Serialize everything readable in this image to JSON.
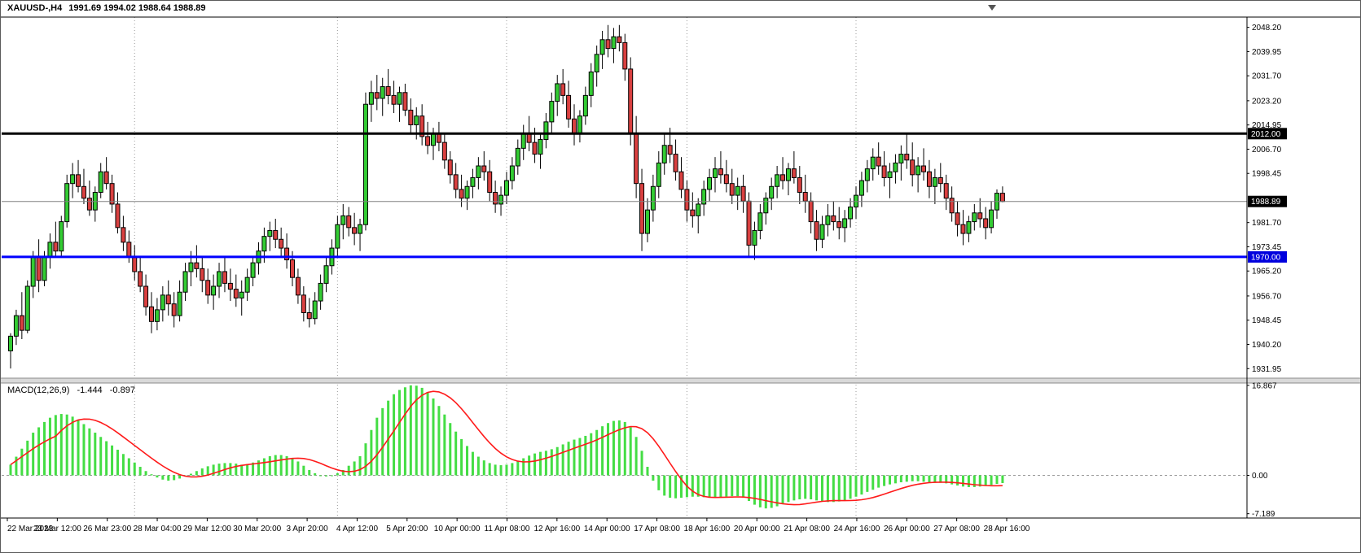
{
  "header": {
    "symbol": "XAUUSD-,H4",
    "ohlc": "1991.69 1994.02 1988.64 1988.89"
  },
  "price_axis": {
    "labels": [
      "2048.20",
      "2039.95",
      "2031.70",
      "2023.20",
      "2014.95",
      "2006.70",
      "1998.45",
      "1981.70",
      "1973.45",
      "1965.20",
      "1956.70",
      "1948.45",
      "1940.20",
      "1931.95"
    ],
    "badges": [
      {
        "label": "2012.00",
        "price": 2012.0,
        "bg": "#000000",
        "fg": "#ffffff"
      },
      {
        "label": "1988.89",
        "price": 1988.89,
        "bg": "#000000",
        "fg": "#ffffff"
      },
      {
        "label": "1970.00",
        "price": 1970.0,
        "bg": "#0000dd",
        "fg": "#ffffff"
      }
    ]
  },
  "macd_panel": {
    "label": "MACD(12,26,9)",
    "main_value": "-1.444",
    "signal_value": "-0.897",
    "axis_labels": [
      "16.867",
      "0.00",
      "-7.189"
    ]
  },
  "time_axis": {
    "labels": [
      "22 Mar 2023",
      "23 Mar 12:00",
      "26 Mar 23:00",
      "28 Mar 04:00",
      "29 Mar 12:00",
      "30 Mar 20:00",
      "3 Apr 20:00",
      "4 Apr 12:00",
      "5 Apr 20:00",
      "10 Apr 00:00",
      "11 Apr 08:00",
      "12 Apr 16:00",
      "14 Apr 00:00",
      "17 Apr 08:00",
      "18 Apr 16:00",
      "20 Apr 00:00",
      "21 Apr 08:00",
      "24 Apr 16:00",
      "26 Apr 00:00",
      "27 Apr 08:00",
      "28 Apr 16:00"
    ]
  },
  "chart_data": {
    "type": "candlestick",
    "symbol": "XAUUSD-",
    "timeframe": "H4",
    "last_bar": {
      "open": 1991.69,
      "high": 1994.02,
      "low": 1988.64,
      "close": 1988.89
    },
    "price_range": [
      1928.7,
      2051.7
    ],
    "grid": "off",
    "week_separator_indices": [
      22,
      58,
      88,
      120,
      150
    ],
    "colors": {
      "bull": "#33cc33",
      "bear": "#d94040",
      "wick": "#000000",
      "histogram": "#44dd44",
      "signal": "#ff1a1a",
      "hline_black": "#000000",
      "hline_blue": "#0000ff",
      "current_price_line": "#808080",
      "separator": "#999999"
    },
    "overlays": {
      "hlines": [
        {
          "price": 2012.0,
          "color": "#000000",
          "width": 3
        },
        {
          "price": 1970.0,
          "color": "#0000ff",
          "width": 3
        }
      ],
      "current_price": 1988.89
    },
    "candles": [
      [
        1938,
        1944,
        1932,
        1943
      ],
      [
        1943,
        1952,
        1940,
        1950
      ],
      [
        1950,
        1958,
        1942,
        1945
      ],
      [
        1945,
        1962,
        1944,
        1960
      ],
      [
        1960,
        1972,
        1956,
        1970
      ],
      [
        1970,
        1976,
        1958,
        1962
      ],
      [
        1962,
        1972,
        1960,
        1970
      ],
      [
        1970,
        1978,
        1966,
        1975
      ],
      [
        1975,
        1982,
        1970,
        1972
      ],
      [
        1972,
        1984,
        1970,
        1982
      ],
      [
        1982,
        1998,
        1980,
        1995
      ],
      [
        1995,
        2002,
        1990,
        1998
      ],
      [
        1998,
        2003,
        1992,
        1994
      ],
      [
        1994,
        2000,
        1988,
        1990
      ],
      [
        1990,
        1996,
        1984,
        1986
      ],
      [
        1986,
        1994,
        1982,
        1992
      ],
      [
        1992,
        2002,
        1990,
        1999
      ],
      [
        1999,
        2004,
        1993,
        1995
      ],
      [
        1995,
        1998,
        1985,
        1988
      ],
      [
        1988,
        1992,
        1978,
        1980
      ],
      [
        1980,
        1984,
        1972,
        1975
      ],
      [
        1975,
        1979,
        1968,
        1970
      ],
      [
        1970,
        1974,
        1962,
        1965
      ],
      [
        1965,
        1970,
        1958,
        1960
      ],
      [
        1960,
        1964,
        1950,
        1953
      ],
      [
        1953,
        1958,
        1944,
        1948
      ],
      [
        1948,
        1956,
        1945,
        1952
      ],
      [
        1952,
        1960,
        1948,
        1957
      ],
      [
        1957,
        1962,
        1950,
        1954
      ],
      [
        1954,
        1958,
        1946,
        1950
      ],
      [
        1950,
        1962,
        1948,
        1958
      ],
      [
        1958,
        1968,
        1955,
        1965
      ],
      [
        1965,
        1972,
        1960,
        1968
      ],
      [
        1968,
        1974,
        1963,
        1966
      ],
      [
        1966,
        1970,
        1958,
        1962
      ],
      [
        1962,
        1966,
        1954,
        1957
      ],
      [
        1957,
        1964,
        1952,
        1960
      ],
      [
        1960,
        1968,
        1956,
        1965
      ],
      [
        1965,
        1970,
        1958,
        1961
      ],
      [
        1961,
        1966,
        1955,
        1959
      ],
      [
        1959,
        1964,
        1953,
        1956
      ],
      [
        1956,
        1962,
        1950,
        1958
      ],
      [
        1958,
        1966,
        1955,
        1963
      ],
      [
        1963,
        1970,
        1960,
        1968
      ],
      [
        1968,
        1975,
        1964,
        1972
      ],
      [
        1972,
        1980,
        1968,
        1977
      ],
      [
        1977,
        1982,
        1972,
        1979
      ],
      [
        1979,
        1983,
        1973,
        1976
      ],
      [
        1976,
        1980,
        1970,
        1973
      ],
      [
        1973,
        1978,
        1966,
        1969
      ],
      [
        1969,
        1972,
        1960,
        1963
      ],
      [
        1963,
        1966,
        1954,
        1957
      ],
      [
        1957,
        1960,
        1948,
        1951
      ],
      [
        1951,
        1956,
        1946,
        1949
      ],
      [
        1949,
        1958,
        1947,
        1955
      ],
      [
        1955,
        1964,
        1952,
        1961
      ],
      [
        1961,
        1970,
        1958,
        1967
      ],
      [
        1967,
        1976,
        1964,
        1973
      ],
      [
        1973,
        1984,
        1970,
        1981
      ],
      [
        1981,
        1988,
        1976,
        1984
      ],
      [
        1984,
        1987,
        1977,
        1980
      ],
      [
        1980,
        1985,
        1974,
        1978
      ],
      [
        1978,
        1983,
        1972,
        1981
      ],
      [
        1981,
        2026,
        1979,
        2022
      ],
      [
        2022,
        2030,
        2016,
        2026
      ],
      [
        2026,
        2032,
        2020,
        2024
      ],
      [
        2024,
        2031,
        2018,
        2028
      ],
      [
        2028,
        2034,
        2022,
        2025
      ],
      [
        2025,
        2030,
        2019,
        2022
      ],
      [
        2022,
        2028,
        2016,
        2026
      ],
      [
        2026,
        2029,
        2018,
        2020
      ],
      [
        2020,
        2024,
        2012,
        2015
      ],
      [
        2015,
        2021,
        2010,
        2018
      ],
      [
        2018,
        2022,
        2008,
        2011
      ],
      [
        2011,
        2016,
        2005,
        2008
      ],
      [
        2008,
        2014,
        2003,
        2012
      ],
      [
        2012,
        2016,
        2006,
        2009
      ],
      [
        2009,
        2012,
        2000,
        2003
      ],
      [
        2003,
        2006,
        1995,
        1998
      ],
      [
        1998,
        2002,
        1990,
        1993
      ],
      [
        1993,
        1998,
        1987,
        1990
      ],
      [
        1990,
        1996,
        1986,
        1994
      ],
      [
        1994,
        2000,
        1990,
        1997
      ],
      [
        1997,
        2004,
        1993,
        2001
      ],
      [
        2001,
        2006,
        1996,
        1999
      ],
      [
        1999,
        2003,
        1989,
        1992
      ],
      [
        1992,
        1996,
        1985,
        1988
      ],
      [
        1988,
        1994,
        1984,
        1991
      ],
      [
        1991,
        1999,
        1988,
        1996
      ],
      [
        1996,
        2004,
        1993,
        2001
      ],
      [
        2001,
        2010,
        1998,
        2007
      ],
      [
        2007,
        2015,
        2003,
        2012
      ],
      [
        2012,
        2018,
        2006,
        2009
      ],
      [
        2009,
        2014,
        2002,
        2005
      ],
      [
        2005,
        2012,
        2000,
        2010
      ],
      [
        2010,
        2019,
        2007,
        2016
      ],
      [
        2016,
        2026,
        2012,
        2023
      ],
      [
        2023,
        2032,
        2018,
        2029
      ],
      [
        2029,
        2034,
        2022,
        2025
      ],
      [
        2025,
        2030,
        2014,
        2017
      ],
      [
        2017,
        2022,
        2008,
        2012
      ],
      [
        2012,
        2020,
        2009,
        2018
      ],
      [
        2018,
        2028,
        2015,
        2025
      ],
      [
        2025,
        2036,
        2021,
        2033
      ],
      [
        2033,
        2042,
        2028,
        2039
      ],
      [
        2039,
        2047,
        2034,
        2044
      ],
      [
        2044,
        2049,
        2038,
        2041
      ],
      [
        2041,
        2048,
        2036,
        2045
      ],
      [
        2045,
        2049,
        2040,
        2043
      ],
      [
        2043,
        2046,
        2030,
        2034
      ],
      [
        2034,
        2038,
        2008,
        2012
      ],
      [
        2012,
        2018,
        1990,
        1995
      ],
      [
        1995,
        2000,
        1972,
        1978
      ],
      [
        1978,
        1990,
        1975,
        1986
      ],
      [
        1986,
        1998,
        1982,
        1994
      ],
      [
        1994,
        2006,
        1990,
        2002
      ],
      [
        2002,
        2012,
        1998,
        2008
      ],
      [
        2008,
        2014,
        2002,
        2005
      ],
      [
        2005,
        2010,
        1996,
        1999
      ],
      [
        1999,
        2004,
        1990,
        1993
      ],
      [
        1993,
        1996,
        1982,
        1986
      ],
      [
        1986,
        1992,
        1980,
        1984
      ],
      [
        1984,
        1990,
        1978,
        1988
      ],
      [
        1988,
        1996,
        1984,
        1993
      ],
      [
        1993,
        2000,
        1989,
        1997
      ],
      [
        1997,
        2004,
        1992,
        2000
      ],
      [
        2000,
        2006,
        1995,
        1998
      ],
      [
        1998,
        2003,
        1992,
        1995
      ],
      [
        1995,
        2000,
        1988,
        1991
      ],
      [
        1991,
        1997,
        1986,
        1994
      ],
      [
        1994,
        1998,
        1985,
        1989
      ],
      [
        1989,
        1992,
        1970,
        1974
      ],
      [
        1974,
        1982,
        1969,
        1979
      ],
      [
        1979,
        1988,
        1976,
        1985
      ],
      [
        1985,
        1992,
        1981,
        1990
      ],
      [
        1990,
        1997,
        1986,
        1994
      ],
      [
        1994,
        2001,
        1990,
        1998
      ],
      [
        1998,
        2004,
        1993,
        1996
      ],
      [
        1996,
        2002,
        1991,
        2000
      ],
      [
        2000,
        2006,
        1995,
        1997
      ],
      [
        1997,
        2001,
        1988,
        1992
      ],
      [
        1992,
        1998,
        1985,
        1989
      ],
      [
        1989,
        1992,
        1978,
        1982
      ],
      [
        1982,
        1986,
        1972,
        1976
      ],
      [
        1976,
        1984,
        1973,
        1981
      ],
      [
        1981,
        1988,
        1977,
        1984
      ],
      [
        1984,
        1989,
        1979,
        1982
      ],
      [
        1982,
        1987,
        1976,
        1980
      ],
      [
        1980,
        1986,
        1975,
        1983
      ],
      [
        1983,
        1990,
        1980,
        1987
      ],
      [
        1987,
        1994,
        1983,
        1991
      ],
      [
        1991,
        1999,
        1987,
        1996
      ],
      [
        1996,
        2003,
        1992,
        2000
      ],
      [
        2000,
        2007,
        1996,
        2004
      ],
      [
        2004,
        2009,
        1998,
        2001
      ],
      [
        2001,
        2006,
        1994,
        1997
      ],
      [
        1997,
        2002,
        1990,
        1999
      ],
      [
        1999,
        2005,
        1995,
        2002
      ],
      [
        2002,
        2008,
        1996,
        2005
      ],
      [
        2005,
        2012,
        2000,
        2003
      ],
      [
        2003,
        2009,
        1994,
        1998
      ],
      [
        1998,
        2004,
        1992,
        2001
      ],
      [
        2001,
        2007,
        1996,
        1999
      ],
      [
        1999,
        2003,
        1990,
        1994
      ],
      [
        1994,
        2000,
        1988,
        1997
      ],
      [
        1997,
        2002,
        1992,
        1995
      ],
      [
        1995,
        1998,
        1986,
        1990
      ],
      [
        1990,
        1994,
        1982,
        1985
      ],
      [
        1985,
        1989,
        1977,
        1981
      ],
      [
        1981,
        1986,
        1974,
        1978
      ],
      [
        1978,
        1984,
        1975,
        1982
      ],
      [
        1982,
        1988,
        1979,
        1985
      ],
      [
        1985,
        1990,
        1980,
        1983
      ],
      [
        1983,
        1987,
        1976,
        1980
      ],
      [
        1980,
        1989,
        1978,
        1986
      ],
      [
        1986,
        1993,
        1983,
        1991.69
      ],
      [
        1991.69,
        1994.02,
        1988.64,
        1988.89
      ]
    ],
    "indicator": {
      "type": "macd",
      "params": [
        12,
        26,
        9
      ],
      "main": -1.444,
      "signal": -0.897,
      "range": [
        -8.0,
        17.3
      ],
      "histogram": [
        2,
        3.5,
        5,
        6.5,
        8,
        9,
        10,
        10.8,
        11.3,
        11.5,
        11.4,
        11,
        10.4,
        9.6,
        8.8,
        8,
        7.2,
        6.4,
        5.6,
        4.8,
        4,
        3.2,
        2.4,
        1.6,
        0.8,
        0.2,
        -0.4,
        -0.8,
        -1,
        -0.9,
        -0.6,
        -0.2,
        0.3,
        0.8,
        1.3,
        1.7,
        2,
        2.2,
        2.3,
        2.3,
        2.2,
        2,
        2.1,
        2.4,
        2.8,
        3.2,
        3.6,
        3.8,
        3.8,
        3.6,
        3.2,
        2.6,
        1.8,
        1,
        0.4,
        0,
        -0.2,
        0,
        0.4,
        1,
        1.8,
        2.6,
        3.6,
        6,
        8.5,
        10.8,
        12.6,
        14,
        15.2,
        16,
        16.5,
        16.867,
        16.8,
        16.4,
        15.6,
        14.4,
        13,
        11.4,
        9.8,
        8.2,
        6.8,
        5.5,
        4.4,
        3.5,
        2.8,
        2.3,
        2,
        1.9,
        2,
        2.3,
        2.7,
        3.2,
        3.7,
        4.1,
        4.4,
        4.6,
        4.9,
        5.3,
        5.8,
        6.3,
        6.7,
        7,
        7.4,
        7.9,
        8.5,
        9.2,
        9.8,
        10.2,
        10.3,
        10,
        9,
        7.2,
        4.6,
        1.6,
        -1,
        -2.8,
        -3.8,
        -4.2,
        -4.3,
        -4.2,
        -4.1,
        -4,
        -4,
        -4.1,
        -4.2,
        -4.2,
        -4.1,
        -4,
        -3.9,
        -3.9,
        -4.2,
        -4.8,
        -5.5,
        -6,
        -6.2,
        -6.1,
        -5.8,
        -5.4,
        -5,
        -4.7,
        -4.5,
        -4.4,
        -4.5,
        -4.7,
        -4.9,
        -5,
        -5,
        -4.9,
        -4.7,
        -4.4,
        -4,
        -3.6,
        -3.1,
        -2.7,
        -2.3,
        -2,
        -1.7,
        -1.5,
        -1.3,
        -1.2,
        -1.1,
        -1.1,
        -1.2,
        -1.3,
        -1.4,
        -1.4,
        -1.5,
        -1.7,
        -1.9,
        -2.1,
        -2.2,
        -2.2,
        -2.1,
        -2,
        -1.8,
        -1.6,
        -1.444
      ]
    }
  }
}
